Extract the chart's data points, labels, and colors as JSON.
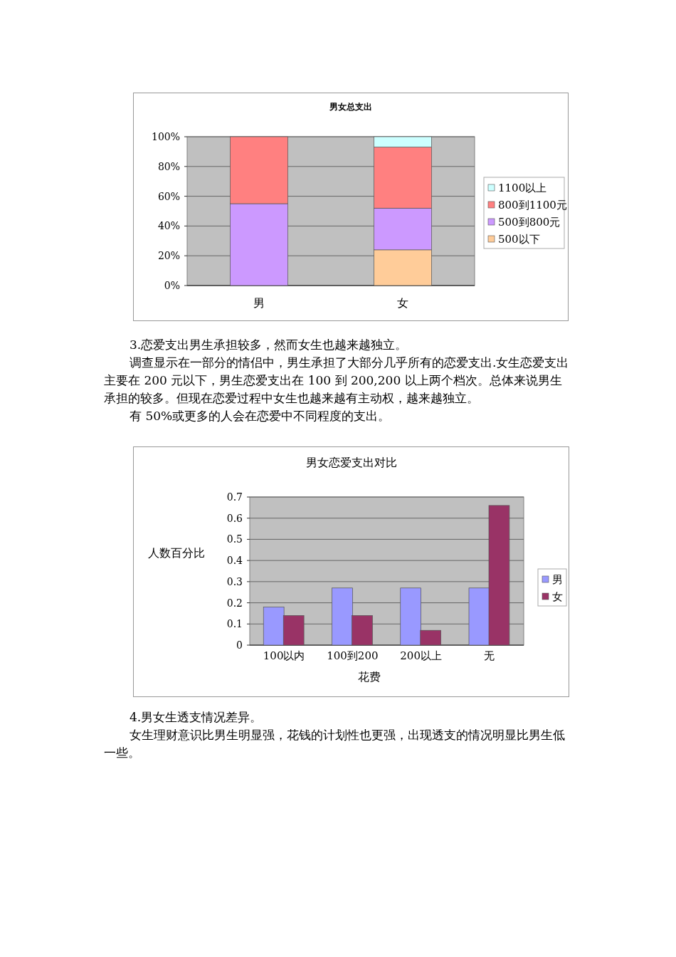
{
  "chart_data": [
    {
      "type": "bar",
      "title": "男女总支出",
      "stacked": true,
      "categories": [
        "男",
        "女"
      ],
      "series": [
        {
          "name": "500以下",
          "color": "#ffcc99",
          "values": [
            0,
            24
          ]
        },
        {
          "name": "500到800元",
          "color": "#cc99ff",
          "values": [
            55,
            28
          ]
        },
        {
          "name": "800到1100元",
          "color": "#ff8080",
          "values": [
            45,
            41
          ]
        },
        {
          "name": "1100以上",
          "color": "#ccffff",
          "values": [
            0,
            7
          ]
        }
      ],
      "ylim": [
        0,
        100
      ],
      "yticks": [
        {
          "value": 0,
          "label": "0%"
        },
        {
          "value": 20,
          "label": "20%"
        },
        {
          "value": 40,
          "label": "40%"
        },
        {
          "value": 60,
          "label": "60%"
        },
        {
          "value": 80,
          "label": "80%"
        },
        {
          "value": 100,
          "label": "100%"
        }
      ],
      "grid": "y",
      "legend": "right",
      "annotations": [
        "3.恋爱支出男生承担较多，然而女生也越来越独立。",
        "调查显示在一部分的情侣中，男生承担了大部分几乎所有的恋爱支出.女生恋爱支出主要在 200 元以下，男生恋爱支出在 100 到 200,200 以上两个档次。总体来说男生承担的较多。但现在恋爱过程中女生也越来越有主动权，越来越独立。",
        "有 50%或更多的人会在恋爱中不同程度的支出。"
      ]
    },
    {
      "type": "bar",
      "title": "男女恋爱支出对比",
      "xlabel": "花费",
      "ylabel": "人数百分比",
      "categories": [
        "100以内",
        "100到200",
        "200以上",
        "无"
      ],
      "series": [
        {
          "name": "男",
          "color": "#9999ff",
          "values": [
            0.18,
            0.27,
            0.27,
            0.27
          ]
        },
        {
          "name": "女",
          "color": "#993366",
          "values": [
            0.14,
            0.14,
            0.07,
            0.66
          ]
        }
      ],
      "ylim": [
        0,
        0.7
      ],
      "yticks": [
        0,
        0.1,
        0.2,
        0.3,
        0.4,
        0.5,
        0.6,
        0.7
      ],
      "grid": "y",
      "legend": "right",
      "annotations": [
        "4.男女生透支情况差异。",
        "女生理财意识比男生明显强，花钱的计划性也更强，出现透支的情况明显比男生低一些。"
      ]
    }
  ]
}
